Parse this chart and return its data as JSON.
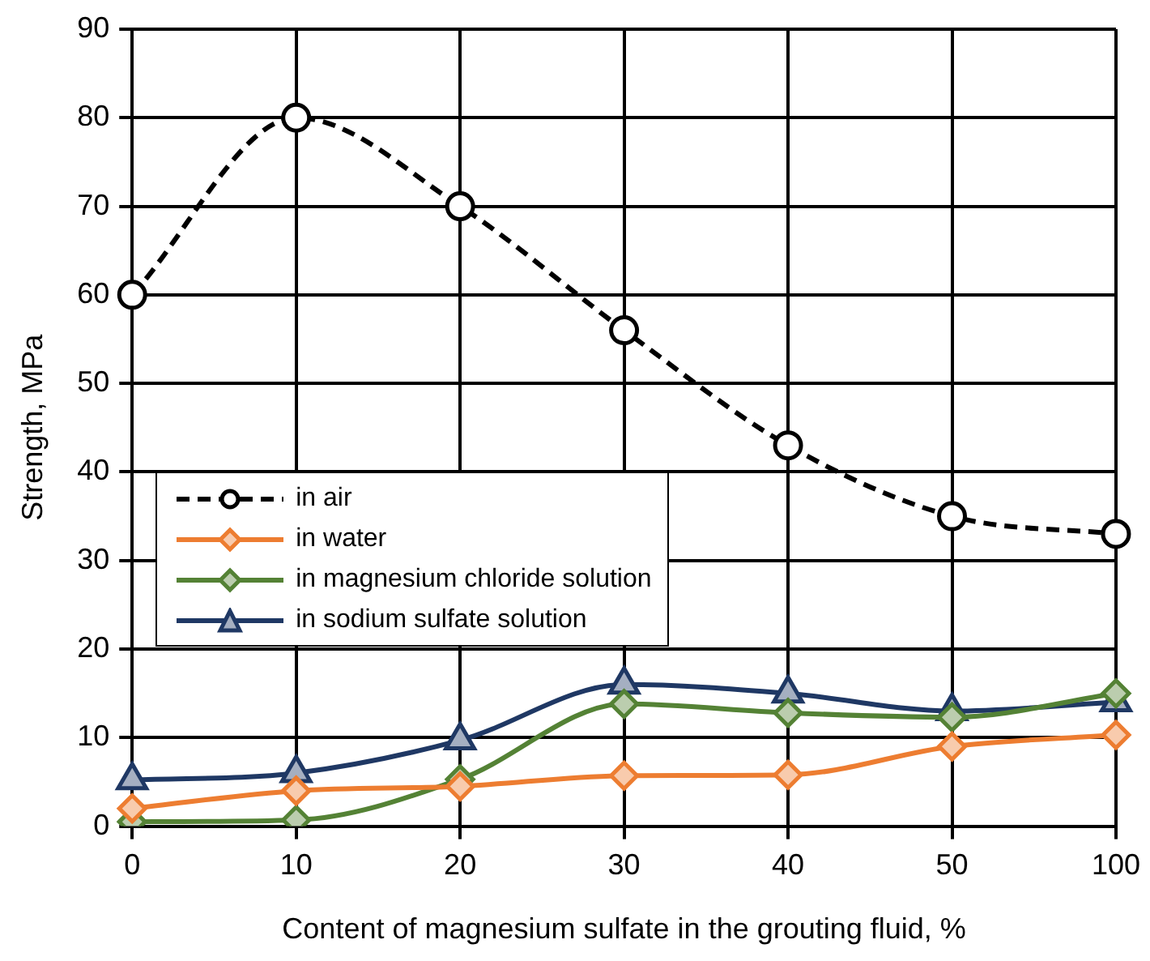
{
  "chart_data": {
    "type": "line",
    "xlabel": "Content of magnesium sulfate in the grouting fluid, %",
    "ylabel": "Strength, MPa",
    "categories": [
      "0",
      "10",
      "20",
      "30",
      "40",
      "50",
      "100"
    ],
    "ylim": [
      0,
      90
    ],
    "yticks": [
      0,
      10,
      20,
      30,
      40,
      50,
      60,
      70,
      80,
      90
    ],
    "grid": true,
    "legend": "left",
    "series": [
      {
        "name": "in air",
        "color": "#000000",
        "marker": "circle",
        "line_style": "dashed",
        "values": [
          60,
          80,
          70,
          56,
          43,
          35,
          33
        ]
      },
      {
        "name": "in water",
        "color": "#ed7d31",
        "marker": "diamond",
        "values": [
          2,
          4,
          4.5,
          5.7,
          5.8,
          9,
          10.3
        ]
      },
      {
        "name": "in magnesium chloride solution",
        "color": "#548235",
        "marker": "diamond",
        "values": [
          0.5,
          0.7,
          5.3,
          13.8,
          12.8,
          12.3,
          15
        ]
      },
      {
        "name": "in sodium sulfate solution",
        "color": "#1f3864",
        "marker": "triangle",
        "values": [
          5.2,
          6,
          9.7,
          16,
          15,
          13,
          14
        ]
      }
    ]
  }
}
